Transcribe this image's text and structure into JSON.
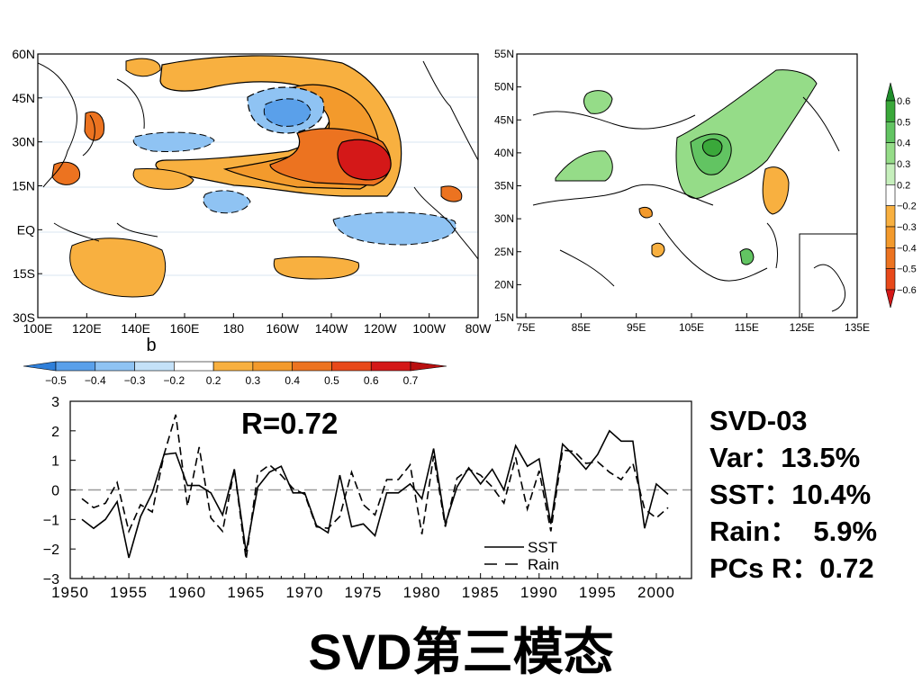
{
  "title": "SVD第三模态",
  "sst_map": {
    "panel_label": "b",
    "lat_labels": [
      "60N",
      "45N",
      "30N",
      "15N",
      "EQ",
      "15S",
      "30S"
    ],
    "lon_labels": [
      "100E",
      "120E",
      "140E",
      "160E",
      "180",
      "160W",
      "140W",
      "120W",
      "100W",
      "80W"
    ],
    "colorbar": {
      "labels": [
        "−0.5",
        "−0.4",
        "−0.3",
        "−0.2",
        "0.2",
        "0.3",
        "0.4",
        "0.5",
        "0.6",
        "0.7"
      ],
      "colors": [
        "#2f7fd9",
        "#5aa0ea",
        "#8fc3f3",
        "#c4e1f8",
        "#ffffff",
        "#f8b040",
        "#f39a2c",
        "#ec7320",
        "#e8491a",
        "#d41818",
        "#b80f0f"
      ]
    }
  },
  "rain_map": {
    "lat_labels": [
      "55N",
      "50N",
      "45N",
      "40N",
      "35N",
      "30N",
      "25N",
      "20N",
      "15N"
    ],
    "lon_labels": [
      "75E",
      "85E",
      "95E",
      "105E",
      "115E",
      "125E",
      "135E"
    ],
    "colorbar": {
      "labels": [
        "0.6",
        "0.5",
        "0.4",
        "0.3",
        "0.2",
        "−0.2",
        "−0.3",
        "−0.4",
        "−0.5",
        "−0.6"
      ],
      "colors": [
        "#1e8c2a",
        "#3aa83a",
        "#62c462",
        "#95dc88",
        "#c6efbc",
        "#ffffff",
        "#f8b040",
        "#f39a2c",
        "#ec7320",
        "#e8491a",
        "#d41818"
      ]
    }
  },
  "chart_data": {
    "type": "line",
    "x": [
      1951,
      1952,
      1953,
      1954,
      1955,
      1956,
      1957,
      1958,
      1959,
      1960,
      1961,
      1962,
      1963,
      1964,
      1965,
      1966,
      1967,
      1968,
      1969,
      1970,
      1971,
      1972,
      1973,
      1974,
      1975,
      1976,
      1977,
      1978,
      1979,
      1980,
      1981,
      1982,
      1983,
      1984,
      1985,
      1986,
      1987,
      1988,
      1989,
      1990,
      1991,
      1992,
      1993,
      1994,
      1995,
      1996,
      1997,
      1998,
      1999,
      2000,
      2001,
      2002
    ],
    "series": [
      {
        "name": "SST",
        "style": "solid",
        "values": [
          -1.0,
          -1.3,
          -1.0,
          -0.4,
          -2.3,
          -0.9,
          -0.1,
          1.2,
          1.25,
          0.15,
          0.15,
          -0.1,
          -0.85,
          0.7,
          -2.1,
          0.1,
          0.6,
          0.8,
          -0.1,
          -0.1,
          -1.2,
          -1.45,
          0.5,
          -1.25,
          -1.15,
          -1.55,
          -0.1,
          -0.1,
          0.2,
          -0.3,
          1.4,
          -1.15,
          0.1,
          0.75,
          0.2,
          0.7,
          0.0,
          1.5,
          0.8,
          1.05,
          -1.15,
          1.55,
          1.15,
          0.7,
          1.2,
          2.0,
          1.65,
          1.65,
          -1.3,
          0.2,
          -0.15,
          null
        ]
      },
      {
        "name": "Rain",
        "style": "dashed",
        "values": [
          -0.3,
          -0.6,
          -0.45,
          0.25,
          -1.4,
          -0.5,
          -0.75,
          1.2,
          2.55,
          -0.55,
          1.45,
          -0.95,
          -1.4,
          0.7,
          -2.35,
          0.55,
          0.85,
          0.5,
          0.05,
          -0.15,
          -1.25,
          -1.3,
          -0.9,
          0.6,
          -0.5,
          -0.85,
          0.35,
          0.35,
          0.85,
          -1.5,
          1.15,
          -1.25,
          0.4,
          0.7,
          0.5,
          0.1,
          -0.45,
          1.1,
          -0.65,
          0.65,
          -1.4,
          1.35,
          1.3,
          0.9,
          0.95,
          0.6,
          0.35,
          0.9,
          -0.65,
          -0.95,
          -0.6,
          null
        ]
      }
    ],
    "ylim": [
      -3,
      3
    ],
    "xlim": [
      1950,
      2003
    ],
    "yticks": [
      3,
      2,
      1,
      0,
      -1,
      -2,
      -3
    ],
    "ytick_labels": [
      "3",
      "2",
      "1",
      "0",
      "−1",
      "−2",
      "−3"
    ],
    "xticks": [
      1950,
      1955,
      1960,
      1965,
      1970,
      1975,
      1980,
      1985,
      1990,
      1995,
      2000
    ],
    "annotation": "R=0.72",
    "legend": [
      "SST",
      "Rain"
    ],
    "legend_position": "bottom-right"
  },
  "stats": {
    "mode": "SVD-03",
    "var": "Var：13.5%",
    "sst": "SST：10.4%",
    "rain": "Rain：  5.9%",
    "pcs": "PCs R：0.72"
  }
}
